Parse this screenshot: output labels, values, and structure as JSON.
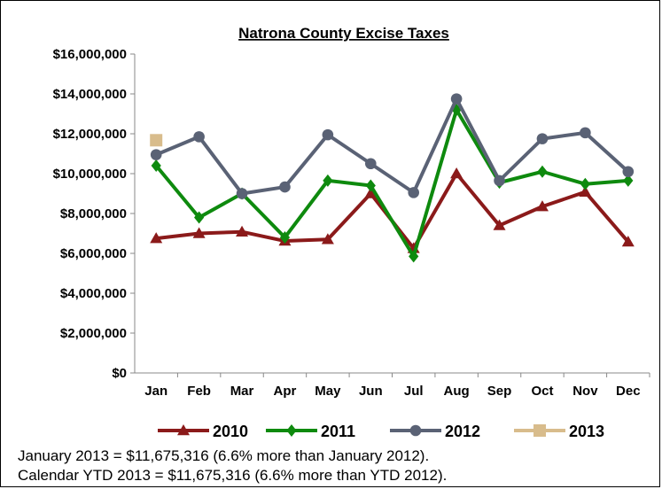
{
  "chart_data": {
    "type": "line",
    "title": "Natrona County Excise Taxes",
    "categories": [
      "Jan",
      "Feb",
      "Mar",
      "Apr",
      "May",
      "Jun",
      "Jul",
      "Aug",
      "Sep",
      "Oct",
      "Nov",
      "Dec"
    ],
    "y_ticks": [
      "$0",
      "$2,000,000",
      "$4,000,000",
      "$6,000,000",
      "$8,000,000",
      "$10,000,000",
      "$12,000,000",
      "$14,000,000",
      "$16,000,000"
    ],
    "ylim": [
      0,
      16000000
    ],
    "grid": false,
    "legend_position": "bottom",
    "series": [
      {
        "name": "2010",
        "color": "#8B1A1A",
        "marker": "triangle",
        "values": [
          6750000,
          7000000,
          7080000,
          6620000,
          6700000,
          9000000,
          6250000,
          10000000,
          7400000,
          8350000,
          9080000,
          6580000
        ]
      },
      {
        "name": "2011",
        "color": "#0E8A0E",
        "marker": "diamond",
        "values": [
          10400000,
          7800000,
          9000000,
          6800000,
          9650000,
          9400000,
          5850000,
          13200000,
          9550000,
          10100000,
          9480000,
          9650000
        ]
      },
      {
        "name": "2012",
        "color": "#5A6275",
        "marker": "circle",
        "values": [
          10950000,
          11850000,
          9000000,
          9330000,
          11950000,
          10500000,
          9050000,
          13750000,
          9650000,
          11750000,
          12050000,
          10100000
        ]
      },
      {
        "name": "2013",
        "color": "#D8BC8C",
        "marker": "square",
        "values": [
          11675316,
          null,
          null,
          null,
          null,
          null,
          null,
          null,
          null,
          null,
          null,
          null
        ]
      }
    ]
  },
  "notes": {
    "line1": "January 2013 = $11,675,316 (6.6% more than January 2012).",
    "line2": "Calendar YTD 2013 = $11,675,316 (6.6% more than YTD 2012)."
  }
}
